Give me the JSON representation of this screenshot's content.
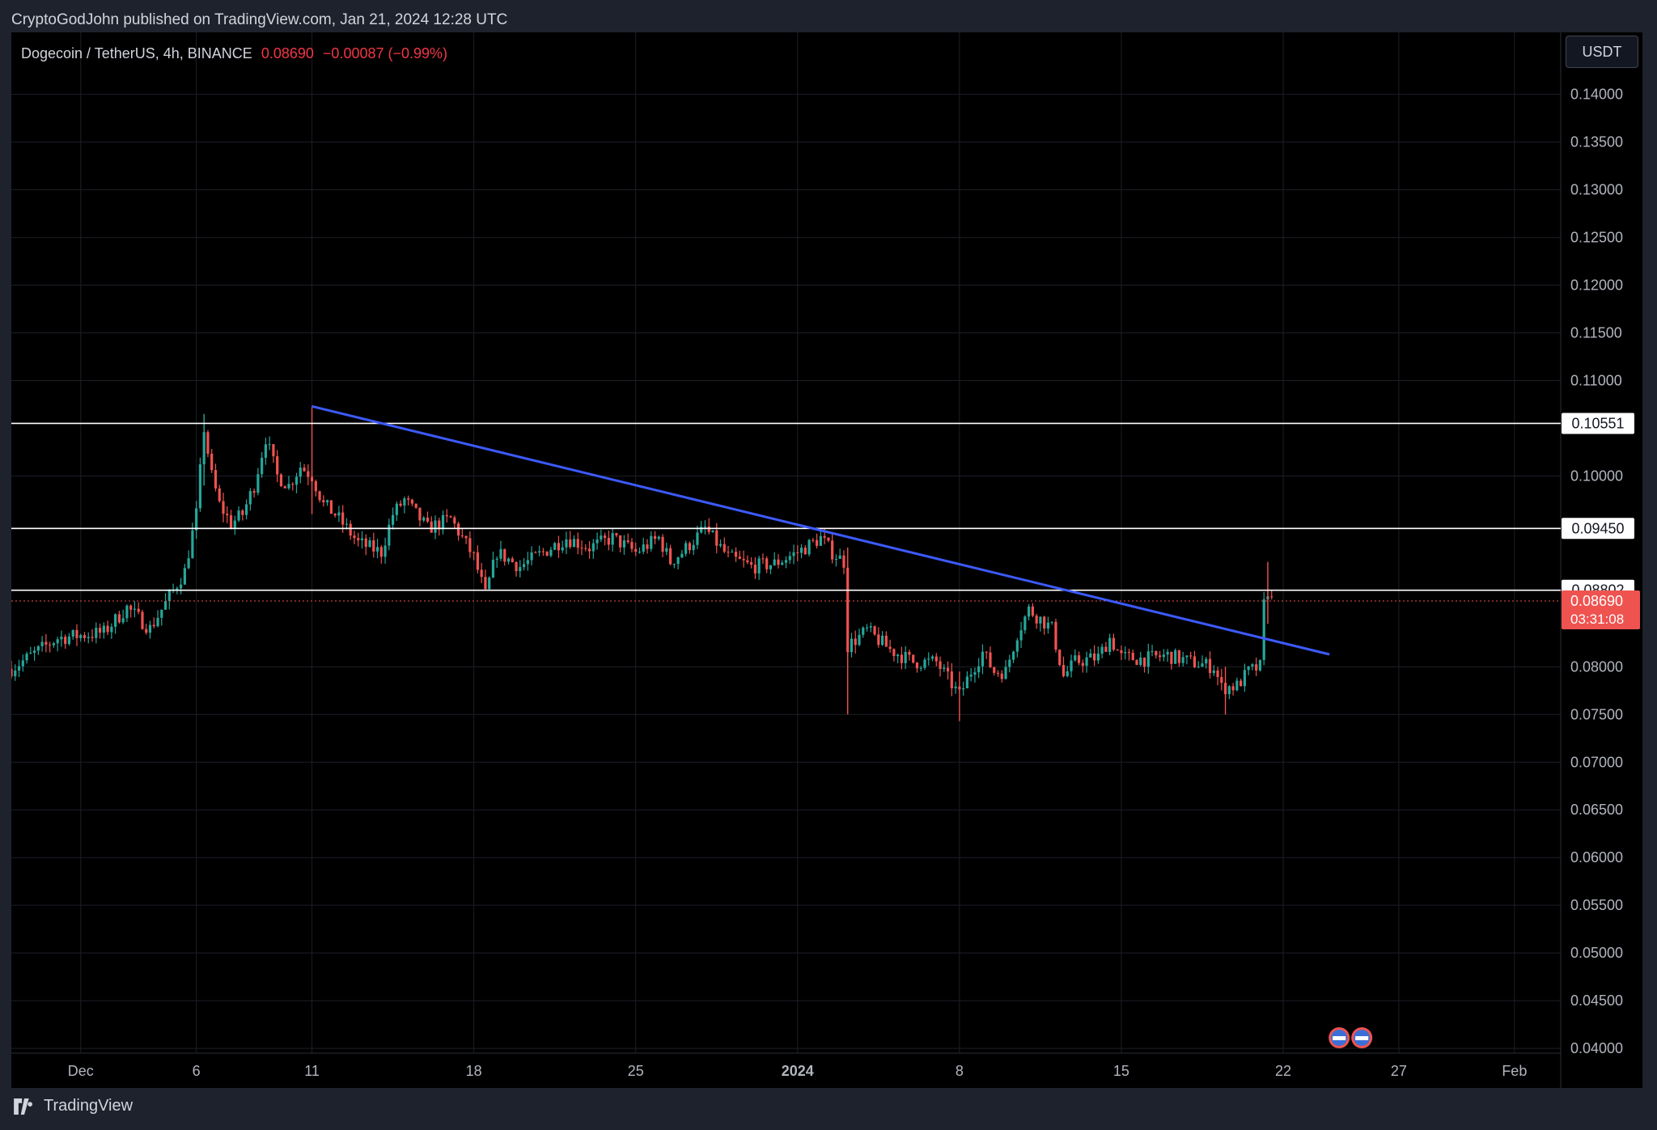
{
  "header": {
    "published_by": "CryptoGodJohn published on TradingView.com, Jan 21, 2024 12:28 UTC"
  },
  "legend": {
    "symbol": "Dogecoin / TetherUS, 4h, BINANCE",
    "price": "0.08690",
    "change": "−0.00087 (−0.99%)"
  },
  "currency_button": "USDT",
  "footer": {
    "brand": "TradingView"
  },
  "colors": {
    "up": "#26a69a",
    "down": "#ef5350",
    "trendline": "#3d5afe",
    "level": "#ffffff",
    "background": "#000000"
  },
  "chart_data": {
    "type": "candlestick",
    "timeframe": "4h",
    "x_range": [
      "2023-11-28",
      "2024-02-03"
    ],
    "ylim": [
      0.0395,
      0.1465
    ],
    "y_ticks": [
      "0.14000",
      "0.13500",
      "0.13000",
      "0.12500",
      "0.12000",
      "0.11500",
      "0.11000",
      "0.10000",
      "0.08000",
      "0.07500",
      "0.07000",
      "0.06500",
      "0.06000",
      "0.05500",
      "0.05000",
      "0.04500",
      "0.04000"
    ],
    "x_ticks": [
      {
        "label": "Dec",
        "date": "2023-12-01",
        "bold": false
      },
      {
        "label": "6",
        "date": "2023-12-06",
        "bold": false
      },
      {
        "label": "11",
        "date": "2023-12-11",
        "bold": false
      },
      {
        "label": "18",
        "date": "2023-12-18",
        "bold": false
      },
      {
        "label": "25",
        "date": "2023-12-25",
        "bold": false
      },
      {
        "label": "2024",
        "date": "2024-01-01",
        "bold": true
      },
      {
        "label": "8",
        "date": "2024-01-08",
        "bold": false
      },
      {
        "label": "15",
        "date": "2024-01-15",
        "bold": false
      },
      {
        "label": "22",
        "date": "2024-01-22",
        "bold": false
      },
      {
        "label": "27",
        "date": "2024-01-27",
        "bold": false
      },
      {
        "label": "Feb",
        "date": "2024-02-01",
        "bold": false
      }
    ],
    "horizontal_levels": [
      {
        "value": 0.10551,
        "label": "0.10551"
      },
      {
        "value": 0.0945,
        "label": "0.09450"
      },
      {
        "value": 0.08802,
        "label": "0.08802"
      }
    ],
    "last_price": {
      "value": 0.0869,
      "label": "0.08690",
      "countdown": "03:31:08"
    },
    "trendline": {
      "from": {
        "date": "2023-12-11",
        "price": 0.1073
      },
      "to": {
        "date": "2024-01-24",
        "price": 0.0813
      }
    },
    "close_path": [
      [
        "2023-11-28",
        0.0798
      ],
      [
        "2023-11-30",
        0.083
      ],
      [
        "2023-12-02",
        0.0836
      ],
      [
        "2023-12-03",
        0.0862
      ],
      [
        "2023-12-04",
        0.084
      ],
      [
        "2023-12-05",
        0.088
      ],
      [
        "2023-12-05T12",
        0.09
      ],
      [
        "2023-12-06",
        0.096
      ],
      [
        "2023-12-06T08",
        0.105
      ],
      [
        "2023-12-06T16",
        0.1
      ],
      [
        "2023-12-07",
        0.097
      ],
      [
        "2023-12-07T12",
        0.095
      ],
      [
        "2023-12-08",
        0.096
      ],
      [
        "2023-12-08T12",
        0.099
      ],
      [
        "2023-12-09",
        0.104
      ],
      [
        "2023-12-09T12",
        0.1
      ],
      [
        "2023-12-10",
        0.099
      ],
      [
        "2023-12-10T12",
        0.101
      ],
      [
        "2023-12-11",
        0.1
      ],
      [
        "2023-12-11T12",
        0.097
      ],
      [
        "2023-12-12",
        0.096
      ],
      [
        "2023-12-13",
        0.093
      ],
      [
        "2023-12-14",
        0.092
      ],
      [
        "2023-12-14T12",
        0.096
      ],
      [
        "2023-12-15",
        0.0975
      ],
      [
        "2023-12-16",
        0.0945
      ],
      [
        "2023-12-17",
        0.0955
      ],
      [
        "2023-12-18",
        0.0915
      ],
      [
        "2023-12-18T12",
        0.0875
      ],
      [
        "2023-12-19",
        0.092
      ],
      [
        "2023-12-20",
        0.0905
      ],
      [
        "2023-12-21",
        0.092
      ],
      [
        "2023-12-22",
        0.0935
      ],
      [
        "2023-12-23",
        0.0925
      ],
      [
        "2023-12-24",
        0.0935
      ],
      [
        "2023-12-25",
        0.092
      ],
      [
        "2023-12-26",
        0.0935
      ],
      [
        "2023-12-26T12",
        0.091
      ],
      [
        "2023-12-27",
        0.092
      ],
      [
        "2023-12-28",
        0.0945
      ],
      [
        "2023-12-29",
        0.0915
      ],
      [
        "2023-12-30",
        0.0905
      ],
      [
        "2023-12-31",
        0.0908
      ],
      [
        "2024-01-01",
        0.092
      ],
      [
        "2024-01-02",
        0.0935
      ],
      [
        "2024-01-02T12",
        0.092
      ],
      [
        "2024-01-03",
        0.091
      ],
      [
        "2024-01-03T04",
        0.0822
      ],
      [
        "2024-01-04",
        0.0838
      ],
      [
        "2024-01-05",
        0.0818
      ],
      [
        "2024-01-06",
        0.0805
      ],
      [
        "2024-01-07",
        0.0805
      ],
      [
        "2024-01-08",
        0.077
      ],
      [
        "2024-01-08T12",
        0.0795
      ],
      [
        "2024-01-09",
        0.0815
      ],
      [
        "2024-01-09T12",
        0.0795
      ],
      [
        "2024-01-10",
        0.0795
      ],
      [
        "2024-01-10T12",
        0.0835
      ],
      [
        "2024-01-11",
        0.086
      ],
      [
        "2024-01-11T12",
        0.085
      ],
      [
        "2024-01-12",
        0.084
      ],
      [
        "2024-01-12T12",
        0.079
      ],
      [
        "2024-01-13",
        0.0805
      ],
      [
        "2024-01-14",
        0.081
      ],
      [
        "2024-01-14T12",
        0.083
      ],
      [
        "2024-01-15",
        0.081
      ],
      [
        "2024-01-16",
        0.0808
      ],
      [
        "2024-01-17",
        0.0812
      ],
      [
        "2024-01-18",
        0.0805
      ],
      [
        "2024-01-19",
        0.08
      ],
      [
        "2024-01-19T08",
        0.0778
      ],
      [
        "2024-01-20",
        0.078
      ],
      [
        "2024-01-20T12",
        0.0795
      ],
      [
        "2024-01-21",
        0.08
      ],
      [
        "2024-01-21T04",
        0.0865
      ],
      [
        "2024-01-21T08",
        0.088
      ],
      [
        "2024-01-21T12",
        0.0869
      ]
    ]
  }
}
